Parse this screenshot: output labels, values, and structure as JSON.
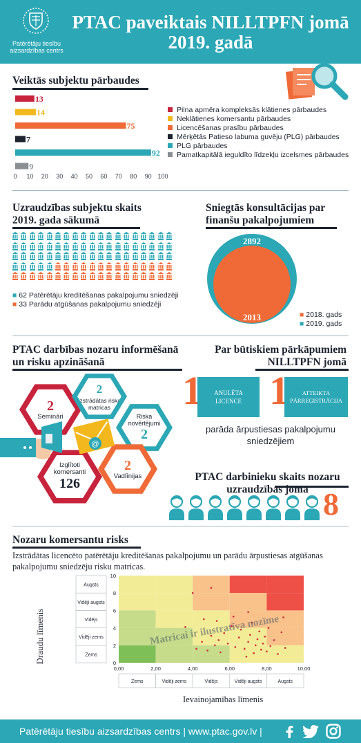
{
  "header": {
    "org_name": "Patērētāju tiesību aizsardzības centrs",
    "title": "PTAC paveiktais NILLTPFN jomā 2019. gadā"
  },
  "inspections": {
    "heading": "Veiktās subjektu pārbaudes",
    "legend": [
      "Pilna apmēra kompleksās klātienes pārbaudes",
      "Neklātienes komersantu pārbaudes",
      "Licencēšanas prasību pārbaudes",
      "Mērķētās Patieso labuma guvēju (PLG) pārbaudes",
      "PLG pārbaudes",
      "Pamatkapitālā ieguldīto līdzekļu izcelsmes pārbaudes"
    ]
  },
  "chart_data": [
    {
      "type": "bar",
      "orientation": "horizontal",
      "title": "Veiktās subjektu pārbaudes",
      "categories": [
        "Pilna apmēra kompleksās klātienes pārbaudes",
        "Neklātienes komersantu pārbaudes",
        "Licencēšanas prasību pārbaudes",
        "Mērķētās Patieso labuma guvēju (PLG) pārbaudes",
        "PLG pārbaudes",
        "Pamatkapitālā ieguldīto līdzekļu izcelsmes pārbaudes"
      ],
      "values": [
        13,
        14,
        75,
        7,
        92,
        9
      ],
      "colors": [
        "#c8233c",
        "#f2b81d",
        "#ef6a37",
        "#1d2430",
        "#2ba7b5",
        "#8a8f94"
      ],
      "xlim": [
        0,
        100
      ],
      "xticks": [
        "0",
        "10",
        "20",
        "30",
        "40",
        "50",
        "60",
        "70",
        "80",
        "90",
        "100"
      ],
      "grid": false,
      "legend_position": "right"
    },
    {
      "type": "pie",
      "title": "Sniegtās konsultācijas par finanšu pakalpojumiem",
      "series": [
        {
          "name": "2018. gads",
          "value": 2013,
          "color": "#ef6a37"
        },
        {
          "name": "2019. gads",
          "value": 2892,
          "color": "#2ba7b5"
        }
      ],
      "legend_position": "bottom-right"
    },
    {
      "type": "scatter",
      "title": "Nozaru komersantu risks",
      "xlabel": "Ievainojamības līmenis",
      "ylabel": "Draudu līmenis",
      "xlim": [
        0,
        10
      ],
      "ylim": [
        0,
        10
      ],
      "xticks": [
        "0,00",
        "2,00",
        "4,00",
        "6,00",
        "8,00",
        "10,00"
      ],
      "yticks": [
        "0",
        "2",
        "4",
        "6",
        "8",
        "10"
      ],
      "x_categories": [
        "Zems",
        "Vidēji zems",
        "Vidējs",
        "Vidēji augsts",
        "Augsts"
      ],
      "y_categories": [
        "Zems",
        "Vidēji zems",
        "Vidējs",
        "Vidēji augsts",
        "Augsts"
      ],
      "watermark": "Matricai ir ilustratīva nozīme",
      "points": [
        [
          4.2,
          1.6
        ],
        [
          4.5,
          2.4
        ],
        [
          4.8,
          1.4
        ],
        [
          5.0,
          3.1
        ],
        [
          5.2,
          2.0
        ],
        [
          5.4,
          2.6
        ],
        [
          5.5,
          1.2
        ],
        [
          5.7,
          3.4
        ],
        [
          5.9,
          2.2
        ],
        [
          6.1,
          4.2
        ],
        [
          6.3,
          1.8
        ],
        [
          6.5,
          2.9
        ],
        [
          6.6,
          3.8
        ],
        [
          6.8,
          1.6
        ],
        [
          7.0,
          2.4
        ],
        [
          7.1,
          3.2
        ],
        [
          7.2,
          4.6
        ],
        [
          7.3,
          1.1
        ],
        [
          7.4,
          2.0
        ],
        [
          7.5,
          2.7
        ],
        [
          7.6,
          3.6
        ],
        [
          7.7,
          1.5
        ],
        [
          7.8,
          2.2
        ],
        [
          7.9,
          3.0
        ],
        [
          8.0,
          1.3
        ],
        [
          8.1,
          4.0
        ],
        [
          8.2,
          1.9
        ],
        [
          8.4,
          2.6
        ],
        [
          8.6,
          1.0
        ],
        [
          8.8,
          3.5
        ],
        [
          9.0,
          1.7
        ],
        [
          4.6,
          5.0
        ],
        [
          6.2,
          5.3
        ],
        [
          8.9,
          5.2
        ],
        [
          3.6,
          4.1
        ],
        [
          4.0,
          8.0
        ],
        [
          5.0,
          8.6
        ],
        [
          6.9,
          0.7
        ],
        [
          5.3,
          4.8
        ],
        [
          7.0,
          5.8
        ]
      ],
      "zone_colors": {
        "low": "#7fbf58",
        "mid_low": "#c7dc8b",
        "mid": "#f2ec97",
        "mid_high": "#f8c28a",
        "high": "#ee4f46"
      }
    }
  ],
  "supervision": {
    "heading": "Uzraudzības subjektu skaits 2019. gada sākumā",
    "legend": [
      "62 Patērētāju kreditēšanas pakalpojumu sniedzēji",
      "33 Parādu atgūšanas pakalpojumu sniedzēji"
    ],
    "counts": [
      62,
      33
    ],
    "colors": [
      "#2ba7b5",
      "#ef6a37"
    ]
  },
  "consult": {
    "heading": "Sniegtās konsultācijas par finanšu pakalpojumiem",
    "v2019": "2892",
    "v2018": "2013",
    "legend": [
      "2018. gads",
      "2019. gads"
    ]
  },
  "inform": {
    "heading": "PTAC darbības nozaru informēšanā un risku apzināšanā",
    "items": [
      {
        "num": "2",
        "label": "Semināri"
      },
      {
        "num": "2",
        "label": "Izstrādātas riska matricas"
      },
      {
        "num": "2",
        "label": "Riska novērtējumi"
      },
      {
        "num": "126",
        "label": "Izglītoti komersanti"
      },
      {
        "num": "2",
        "label": "Vadlīnijas"
      }
    ]
  },
  "violations": {
    "heading": "Par būtiskiem pārkāpumiem NILLTPFN jomā",
    "n1": "1",
    "b1": "ANULĒTA LICENCE",
    "n2": "1",
    "b2": "ATTEIKTA PĀRREĢISTRĀCIJA",
    "note": "parāda ārpustiesas pakalpojumu sniedzējiem"
  },
  "staff": {
    "heading": "PTAC darbinieku skaits nozaru uzraudzības jomā",
    "count": 8
  },
  "risk": {
    "heading": "Nozaru komersantu risks",
    "desc": "Izstrādātas licencēto patērētāju kreditēšanas pakalpojumu un parādu ārpustiesas atgūšanas pakalpojumu sniedzēju risku matricas."
  },
  "footer": {
    "text": "Patērētāju tiesību aizsardzības centrs | www.ptac.gov.lv |",
    "icons": [
      "facebook-icon",
      "twitter-icon",
      "instagram-icon"
    ]
  }
}
